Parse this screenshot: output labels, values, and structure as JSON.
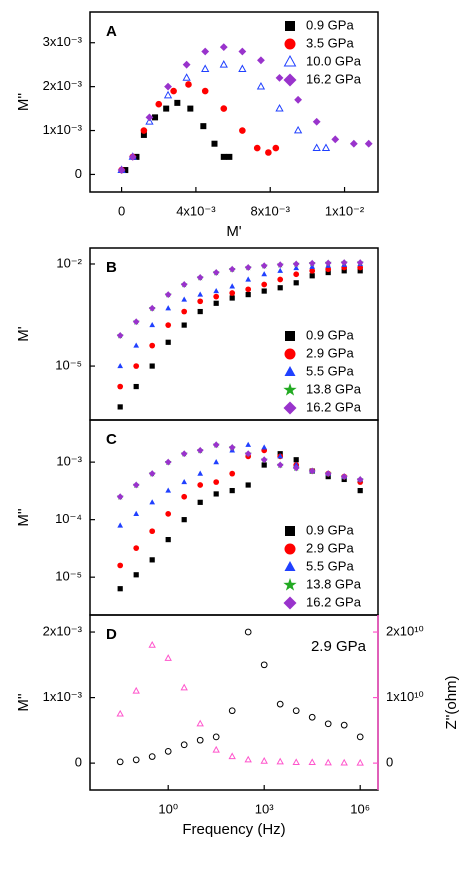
{
  "chart_data": [
    {
      "type": "scatter",
      "panel_label": "A",
      "x_label": "M'",
      "y_label": "M''",
      "xlim": [
        -0.0017,
        0.0138
      ],
      "ylim": [
        -0.0004,
        0.0037
      ],
      "xticks": [
        0,
        {
          "value": 0.004,
          "label": "4x10⁻³"
        },
        {
          "value": 0.008,
          "label": "8x10⁻³"
        },
        {
          "value": 0.012,
          "label": "1x10⁻²"
        }
      ],
      "yticks": [
        0,
        {
          "value": 0.001,
          "label": "1x10⁻³"
        },
        {
          "value": 0.002,
          "label": "2x10⁻³"
        },
        {
          "value": 0.003,
          "label": "3x10⁻³"
        }
      ],
      "legend": "upper right",
      "series": [
        {
          "name": "0.9 GPa",
          "color": "#000000",
          "marker": "square",
          "x": [
            0.0002,
            0.0008,
            0.0012,
            0.0018,
            0.0024,
            0.003,
            0.0037,
            0.0044,
            0.005,
            0.0055,
            0.0058
          ],
          "values": [
            0.0001,
            0.0004,
            0.0009,
            0.0013,
            0.0015,
            0.00163,
            0.0015,
            0.0011,
            0.0007,
            0.0004,
            0.0004
          ]
        },
        {
          "name": "3.5 GPa",
          "color": "#ff0000",
          "marker": "circle",
          "x": [
            0,
            0.0006,
            0.0012,
            0.002,
            0.0028,
            0.0036,
            0.0045,
            0.0055,
            0.0065,
            0.0073,
            0.0079,
            0.0083
          ],
          "values": [
            0.0001,
            0.0004,
            0.001,
            0.0016,
            0.0019,
            0.00205,
            0.0019,
            0.0015,
            0.001,
            0.0006,
            0.0005,
            0.0006
          ]
        },
        {
          "name": "10.0 GPa",
          "color": "#2040ff",
          "marker": "triangle-open",
          "x": [
            0,
            0.0006,
            0.0015,
            0.0025,
            0.0035,
            0.0045,
            0.0055,
            0.0065,
            0.0075,
            0.0085,
            0.0095,
            0.0105,
            0.011
          ],
          "values": [
            0.0001,
            0.0004,
            0.0012,
            0.0018,
            0.0022,
            0.0024,
            0.0025,
            0.0024,
            0.002,
            0.0015,
            0.001,
            0.0006,
            0.0006
          ]
        },
        {
          "name": "16.2 GPa",
          "color": "#9933cc",
          "marker": "diamond",
          "x": [
            0,
            0.0006,
            0.0015,
            0.0025,
            0.0035,
            0.0045,
            0.0055,
            0.0065,
            0.0075,
            0.0085,
            0.0095,
            0.0105,
            0.0115,
            0.0125,
            0.0133
          ],
          "values": [
            0.0001,
            0.0004,
            0.0013,
            0.002,
            0.0025,
            0.0028,
            0.0029,
            0.0028,
            0.0026,
            0.0022,
            0.0017,
            0.0012,
            0.0008,
            0.0007,
            0.0007
          ]
        }
      ]
    },
    {
      "type": "scatter",
      "panel_label": "B",
      "y_label": "M'",
      "xlog": true,
      "ylog": true,
      "xlim": [
        0.0036,
        3600000
      ],
      "ylim": [
        2.6e-07,
        0.0295
      ],
      "yticks": [
        {
          "value": 1e-05,
          "label": "10⁻⁵"
        },
        {
          "value": 0.01,
          "label": "10⁻²"
        }
      ],
      "legend": "lower right",
      "x": [
        0.0316,
        0.1,
        0.316,
        1,
        3.16,
        10,
        31.6,
        100,
        316,
        1000,
        3162,
        10000,
        31623,
        100000,
        316228,
        1000000
      ],
      "series": [
        {
          "name": "0.9 GPa",
          "color": "#000000",
          "marker": "square",
          "values": [
            6.3e-07,
            2.5e-06,
            1e-05,
            5e-05,
            0.00016,
            0.0004,
            0.0007,
            0.001,
            0.00126,
            0.0016,
            0.002,
            0.0028,
            0.0045,
            0.0056,
            0.0063,
            0.0063
          ]
        },
        {
          "name": "2.9 GPa",
          "color": "#ff0000",
          "marker": "circle",
          "values": [
            2.5e-06,
            1e-05,
            4e-05,
            0.00016,
            0.0004,
            0.0008,
            0.0011,
            0.0014,
            0.0018,
            0.0025,
            0.0035,
            0.005,
            0.0063,
            0.007,
            0.0079,
            0.0079
          ]
        },
        {
          "name": "5.5 GPa",
          "color": "#2040ff",
          "marker": "triangle",
          "values": [
            1e-05,
            4e-05,
            0.00016,
            0.0005,
            0.0009,
            0.00126,
            0.0016,
            0.0022,
            0.0035,
            0.005,
            0.0063,
            0.0076,
            0.0083,
            0.0089,
            0.0095,
            0.01
          ]
        },
        {
          "name": "13.8 GPa",
          "color": "#22aa22",
          "marker": "star",
          "values": [
            7.9e-05,
            0.0002,
            0.0005,
            0.00126,
            0.0025,
            0.004,
            0.0056,
            0.007,
            0.0079,
            0.0089,
            0.0095,
            0.01,
            0.0105,
            0.0107,
            0.011,
            0.011
          ]
        },
        {
          "name": "16.2 GPa",
          "color": "#9933cc",
          "marker": "diamond",
          "values": [
            7.9e-05,
            0.0002,
            0.0005,
            0.00126,
            0.0025,
            0.004,
            0.0056,
            0.007,
            0.0079,
            0.0089,
            0.0095,
            0.01,
            0.0105,
            0.0107,
            0.011,
            0.011
          ]
        }
      ]
    },
    {
      "type": "scatter",
      "panel_label": "C",
      "y_label": "M''",
      "xlog": true,
      "ylog": true,
      "xlim": [
        0.0036,
        3600000
      ],
      "ylim": [
        2.2e-06,
        0.0054
      ],
      "yticks": [
        {
          "value": 1e-05,
          "label": "10⁻⁵"
        },
        {
          "value": 0.0001,
          "label": "10⁻⁴"
        },
        {
          "value": 0.001,
          "label": "10⁻³"
        }
      ],
      "legend": "lower right",
      "x": [
        0.0316,
        0.1,
        0.316,
        1,
        3.16,
        10,
        31.6,
        100,
        316,
        1000,
        3162,
        10000,
        31623,
        100000,
        316228,
        1000000
      ],
      "series": [
        {
          "name": "0.9 GPa",
          "color": "#000000",
          "marker": "square",
          "values": [
            6.3e-06,
            1.1e-05,
            2e-05,
            4.5e-05,
            0.0001,
            0.0002,
            0.00028,
            0.00032,
            0.0004,
            0.00089,
            0.0014,
            0.0011,
            0.0007,
            0.00056,
            0.0005,
            0.00032
          ]
        },
        {
          "name": "2.9 GPa",
          "color": "#ff0000",
          "marker": "circle",
          "values": [
            1.6e-05,
            3.2e-05,
            6.3e-05,
            0.000126,
            0.00025,
            0.0004,
            0.00045,
            0.00063,
            0.00126,
            0.0016,
            0.00126,
            0.00089,
            0.0007,
            0.00063,
            0.00056,
            0.00045
          ]
        },
        {
          "name": "5.5 GPa",
          "color": "#2040ff",
          "marker": "triangle",
          "values": [
            7.9e-05,
            0.000126,
            0.0002,
            0.00032,
            0.00045,
            0.00063,
            0.001,
            0.0016,
            0.002,
            0.0018,
            0.00126,
            0.00089,
            0.0007,
            0.00063,
            0.00056,
            0.0005
          ]
        },
        {
          "name": "13.8 GPa",
          "color": "#22aa22",
          "marker": "star",
          "values": [
            0.00025,
            0.0004,
            0.00063,
            0.001,
            0.0014,
            0.0016,
            0.002,
            0.0018,
            0.0014,
            0.0011,
            0.00089,
            0.00079,
            0.0007,
            0.00063,
            0.00056,
            0.0005
          ]
        },
        {
          "name": "16.2 GPa",
          "color": "#9933cc",
          "marker": "diamond",
          "values": [
            0.00025,
            0.0004,
            0.00063,
            0.001,
            0.0014,
            0.0016,
            0.002,
            0.0018,
            0.0014,
            0.0011,
            0.00089,
            0.00079,
            0.0007,
            0.00063,
            0.00056,
            0.0005
          ]
        }
      ]
    },
    {
      "type": "scatter",
      "panel_label": "D",
      "annotation": "2.9 GPa",
      "x_label": "Frequency (Hz)",
      "y_label": "M''",
      "y2_label": "Z''(ohm)",
      "xlog": true,
      "xlim": [
        0.0036,
        3600000
      ],
      "ylim": [
        -0.00041,
        0.00226
      ],
      "y2lim": [
        -4100000000.0,
        22600000000.0
      ],
      "xticks": [
        {
          "value": 1,
          "label": "10⁰"
        },
        {
          "value": 1000,
          "label": "10³"
        },
        {
          "value": 1000000,
          "label": "10⁶"
        }
      ],
      "yticks": [
        0,
        {
          "value": 0.001,
          "label": "1x10⁻³"
        },
        {
          "value": 0.002,
          "label": "2x10⁻³"
        }
      ],
      "y2ticks": [
        0,
        {
          "value": 10000000000.0,
          "label": "1x10¹⁰"
        },
        {
          "value": 20000000000.0,
          "label": "2x10¹⁰"
        }
      ],
      "y2_color": "#ff55cc",
      "x": [
        0.0316,
        0.1,
        0.316,
        1,
        3.16,
        10,
        31.6,
        100,
        316,
        1000,
        3162,
        10000,
        31623,
        100000,
        316228,
        1000000
      ],
      "series": [
        {
          "color": "#000000",
          "marker": "circle-open",
          "values": [
            2e-05,
            5e-05,
            0.0001,
            0.00018,
            0.00028,
            0.00035,
            0.0004,
            0.0008,
            0.002,
            0.0015,
            0.0009,
            0.0008,
            0.0007,
            0.0006,
            0.00058,
            0.0004
          ]
        },
        {
          "color": "#ff55cc",
          "marker": "triangle-open",
          "axis": "y2",
          "values": [
            7500000000.0,
            11000000000.0,
            18000000000.0,
            16000000000.0,
            11500000000.0,
            6000000000.0,
            2000000000.0,
            1000000000.0,
            500000000.0,
            300000000.0,
            200000000.0,
            100000000.0,
            100000000.0,
            50000000.0,
            30000000.0,
            20000000.0
          ]
        }
      ]
    }
  ]
}
